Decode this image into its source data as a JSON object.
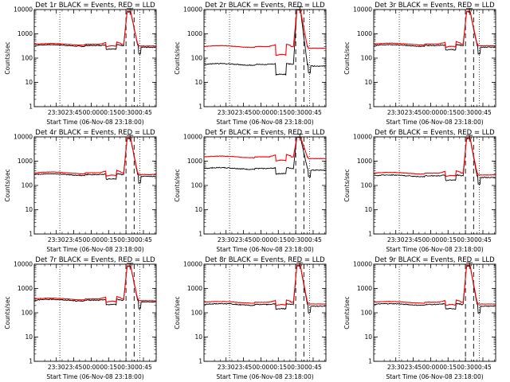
{
  "window": {
    "title": ""
  },
  "chart_data": {
    "type": "line",
    "grid_layout": "3x3",
    "x_tick_labels": [
      "23:30",
      "23:45",
      "00:00",
      "00:15",
      "00:30",
      "00:45"
    ],
    "x_ticks_minutes": [
      -30,
      -15,
      0,
      15,
      30,
      45
    ],
    "xlim_minutes": [
      -49,
      56
    ],
    "xlabel": "Start Time (06-Nov-08 23:18:00)",
    "ylabel": "Counts/sec",
    "y_scale": "log",
    "ylim": [
      1,
      10000
    ],
    "y_tick_labels": [
      "1",
      "10",
      "100",
      "1000",
      "10000"
    ],
    "dotted_lines_minutes": [
      -27,
      42
    ],
    "dashed_lines_minutes": [
      30,
      37
    ],
    "legend_placement": "none",
    "colors": {
      "events": "#000000",
      "lld": "#ff0000",
      "axes": "#000000"
    },
    "panels": [
      {
        "title": "Det 1r BLACK = Events, RED = LLD",
        "events_base": 330,
        "lld_base": 370,
        "dip": 0.65,
        "peak": 8500,
        "events_peak": 8000
      },
      {
        "title": "Det 2r BLACK = Events, RED = LLD",
        "events_base": 55,
        "lld_base": 300,
        "dip": 0.35,
        "peak": 10000,
        "events_peak": 9800
      },
      {
        "title": "Det 3r BLACK = Events, RED = LLD",
        "events_base": 330,
        "lld_base": 380,
        "dip": 0.6,
        "peak": 8500,
        "events_peak": 8000
      },
      {
        "title": "Det 4r BLACK = Events, RED = LLD",
        "events_base": 280,
        "lld_base": 330,
        "dip": 0.6,
        "peak": 9000,
        "events_peak": 8500
      },
      {
        "title": "Det 5r BLACK = Events, RED = LLD",
        "events_base": 500,
        "lld_base": 1500,
        "dip": 0.55,
        "peak": 10000,
        "events_peak": 9800
      },
      {
        "title": "Det 6r BLACK = Events, RED = LLD",
        "events_base": 250,
        "lld_base": 320,
        "dip": 0.6,
        "peak": 9000,
        "events_peak": 8500
      },
      {
        "title": "Det 7r BLACK = Events, RED = LLD",
        "events_base": 330,
        "lld_base": 370,
        "dip": 0.6,
        "peak": 8500,
        "events_peak": 8000
      },
      {
        "title": "Det 8r BLACK = Events, RED = LLD",
        "events_base": 220,
        "lld_base": 270,
        "dip": 0.6,
        "peak": 9000,
        "events_peak": 8500
      },
      {
        "title": "Det 9r BLACK = Events, RED = LLD",
        "events_base": 220,
        "lld_base": 270,
        "dip": 0.6,
        "peak": 9000,
        "events_peak": 8500
      }
    ]
  }
}
